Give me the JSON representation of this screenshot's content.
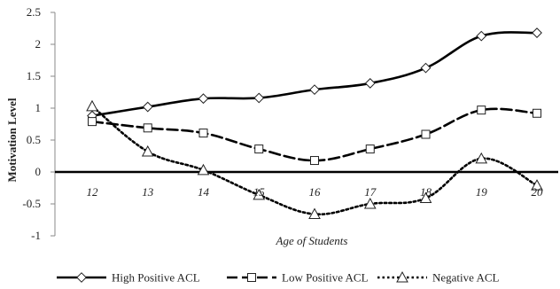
{
  "chart_data": {
    "type": "line",
    "title": "",
    "xlabel": "Age of Students",
    "ylabel": "Motivation Level",
    "categories": [
      "12",
      "13",
      "14",
      "15",
      "16",
      "17",
      "18",
      "19",
      "20"
    ],
    "ylim": [
      -1,
      2.5
    ],
    "yticks": [
      "2.5",
      "2",
      "1.5",
      "1",
      "0.5",
      "0",
      "-0.5",
      "-1"
    ],
    "grid": false,
    "legend_position": "bottom",
    "series": [
      {
        "name": "High Positive ACL",
        "values": [
          0.88,
          1.02,
          1.15,
          1.16,
          1.29,
          1.39,
          1.63,
          2.13,
          2.18
        ],
        "marker": "diamond",
        "line_style": "solid",
        "color": "#000000"
      },
      {
        "name": "Low Positive ACL",
        "values": [
          0.79,
          0.69,
          0.61,
          0.36,
          0.18,
          0.36,
          0.59,
          0.97,
          0.92
        ],
        "marker": "square",
        "line_style": "dashed",
        "color": "#000000"
      },
      {
        "name": "Negative ACL",
        "values": [
          1.03,
          0.32,
          0.03,
          -0.36,
          -0.66,
          -0.5,
          -0.41,
          0.21,
          -0.21
        ],
        "marker": "triangle",
        "line_style": "dotted",
        "color": "#000000"
      }
    ]
  }
}
